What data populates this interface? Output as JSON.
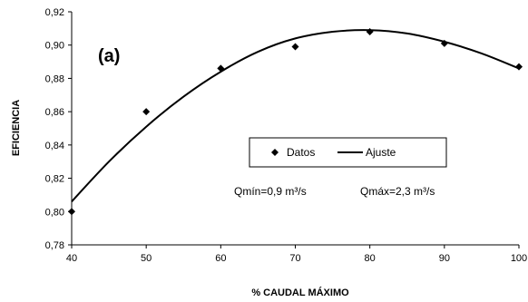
{
  "chart_data": {
    "type": "scatter",
    "panel_label": "(a)",
    "xlabel": "% CAUDAL MÁXIMO",
    "ylabel": "EFICIENCIA",
    "xlim": [
      40,
      100
    ],
    "ylim": [
      0.78,
      0.92
    ],
    "x_ticks": [
      40,
      50,
      60,
      70,
      80,
      90,
      100
    ],
    "x_tick_labels": [
      "40",
      "50",
      "60",
      "70",
      "80",
      "90",
      "100"
    ],
    "y_ticks": [
      0.78,
      0.8,
      0.82,
      0.84,
      0.86,
      0.88,
      0.9,
      0.92
    ],
    "y_tick_labels": [
      "0,78",
      "0,80",
      "0,82",
      "0,84",
      "0,86",
      "0,88",
      "0,90",
      "0,92"
    ],
    "grid": false,
    "legend_position": "center-right",
    "series": [
      {
        "name": "Datos",
        "kind": "points",
        "marker": "diamond",
        "x": [
          40,
          50,
          60,
          70,
          80,
          90,
          100
        ],
        "y": [
          0.8,
          0.86,
          0.886,
          0.899,
          0.908,
          0.901,
          0.887
        ]
      },
      {
        "name": "Ajuste",
        "kind": "line",
        "x": [
          40,
          45,
          50,
          55,
          60,
          65,
          70,
          75,
          80,
          85,
          90,
          95,
          100
        ],
        "y": [
          0.806,
          0.83,
          0.851,
          0.869,
          0.884,
          0.896,
          0.904,
          0.908,
          0.909,
          0.907,
          0.902,
          0.895,
          0.886
        ]
      }
    ],
    "annotations": [
      "Qmín=0,9 m³/s",
      "Qmáx=2,3 m³/s"
    ]
  }
}
